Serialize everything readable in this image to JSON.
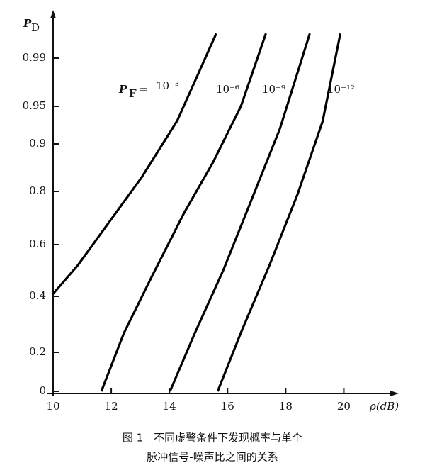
{
  "chart_data": {
    "type": "line",
    "y_label": "P",
    "y_label_sub": "D",
    "x_label": "ρ(dB)",
    "pf_symbol": "P",
    "pf_subscript": "F",
    "pf_equals": "=",
    "caption": [
      "图 1　不同虚警条件下发现概率与单个",
      "脉冲信号-噪声比之间的关系"
    ],
    "xlim": [
      10,
      21.5
    ],
    "xticks": [
      10,
      12,
      14,
      16,
      18,
      20
    ],
    "ylim": [
      0,
      0.999
    ],
    "yticks": [
      0,
      0.2,
      0.4,
      0.6,
      0.8,
      0.9,
      0.95,
      0.99
    ],
    "yscale": "probability",
    "series": [
      {
        "name": "10⁻³",
        "color": "#000000",
        "x": [
          10,
          10.85,
          11.83,
          13.05,
          14.27,
          15.61
        ],
        "values": [
          0.41,
          0.52,
          0.67,
          0.83,
          0.931,
          0.996
        ]
      },
      {
        "name": "10⁻⁶",
        "color": "#000000",
        "x": [
          11.66,
          12.44,
          13.41,
          14.51,
          15.49,
          16.46,
          17.32
        ],
        "values": [
          0,
          0.27,
          0.48,
          0.72,
          0.86,
          0.95,
          0.996
        ]
      },
      {
        "name": "10⁻⁹",
        "color": "#000000",
        "x": [
          14.02,
          14.88,
          15.85,
          16.83,
          17.8,
          18.83
        ],
        "values": [
          0,
          0.27,
          0.5,
          0.77,
          0.92,
          0.996
        ]
      },
      {
        "name": "10⁻¹²",
        "color": "#000000",
        "x": [
          15.66,
          16.46,
          17.44,
          18.41,
          19.27,
          19.88
        ],
        "values": [
          0,
          0.27,
          0.52,
          0.79,
          0.93,
          0.996
        ]
      }
    ]
  }
}
